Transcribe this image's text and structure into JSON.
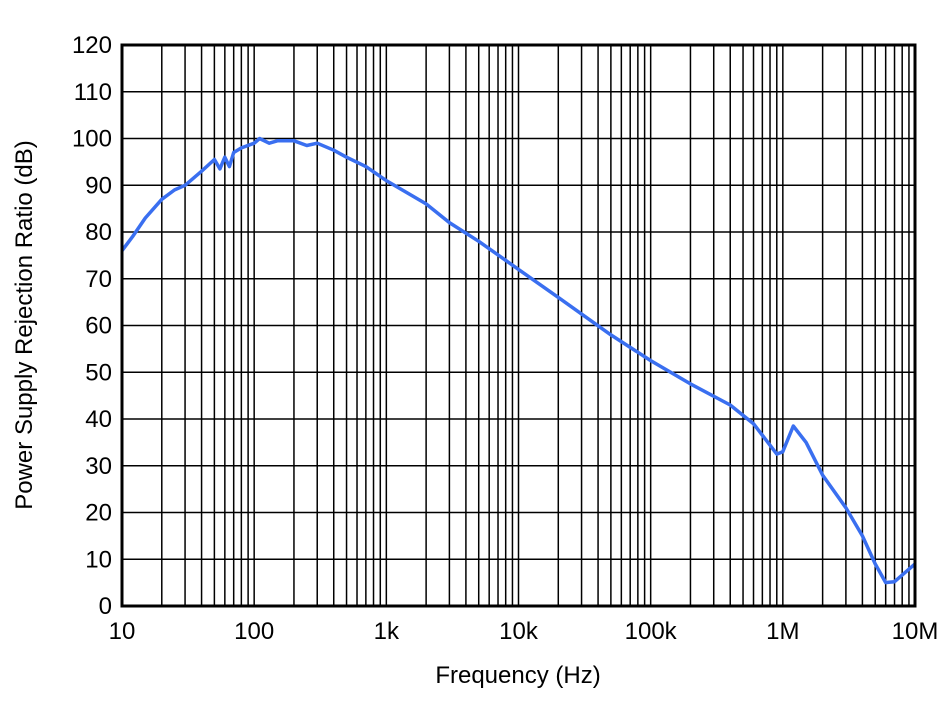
{
  "chart_data": {
    "type": "line",
    "title": "",
    "xlabel": "Frequency (Hz)",
    "ylabel": "Power Supply Rejection Ratio (dB)",
    "xscale": "log",
    "xlim": [
      10,
      10000000
    ],
    "ylim": [
      0,
      120
    ],
    "grid": true,
    "x_ticks": [
      10,
      100,
      1000,
      10000,
      100000,
      1000000,
      10000000
    ],
    "x_tick_labels": [
      "10",
      "100",
      "1k",
      "10k",
      "100k",
      "1M",
      "10M"
    ],
    "y_ticks": [
      0,
      10,
      20,
      30,
      40,
      50,
      60,
      70,
      80,
      90,
      100,
      110,
      120
    ],
    "y_tick_labels": [
      "0",
      "10",
      "20",
      "30",
      "40",
      "50",
      "60",
      "70",
      "80",
      "90",
      "100",
      "110",
      "120"
    ],
    "series": [
      {
        "color": "#3a6ff0",
        "x": [
          10,
          12,
          15,
          20,
          25,
          30,
          40,
          50,
          55,
          60,
          65,
          70,
          80,
          100,
          110,
          130,
          150,
          200,
          250,
          300,
          400,
          500,
          700,
          1000,
          2000,
          3000,
          5000,
          10000,
          20000,
          50000,
          100000,
          200000,
          400000,
          600000,
          900000,
          1000000,
          1200000,
          1500000,
          2000000,
          3000000,
          4000000,
          5000000,
          6000000,
          7000000,
          10000000
        ],
        "y": [
          76,
          79,
          83,
          87,
          89,
          90,
          93,
          95.5,
          93.5,
          96,
          94,
          97,
          98,
          99,
          100,
          99,
          99.5,
          99.5,
          98.5,
          99,
          97.5,
          96,
          94,
          91,
          86,
          82,
          78,
          72,
          66,
          58,
          52.5,
          47.5,
          43,
          39,
          32.5,
          33,
          38.5,
          35,
          28,
          21,
          15,
          9,
          5,
          5.2,
          9
        ]
      }
    ]
  }
}
